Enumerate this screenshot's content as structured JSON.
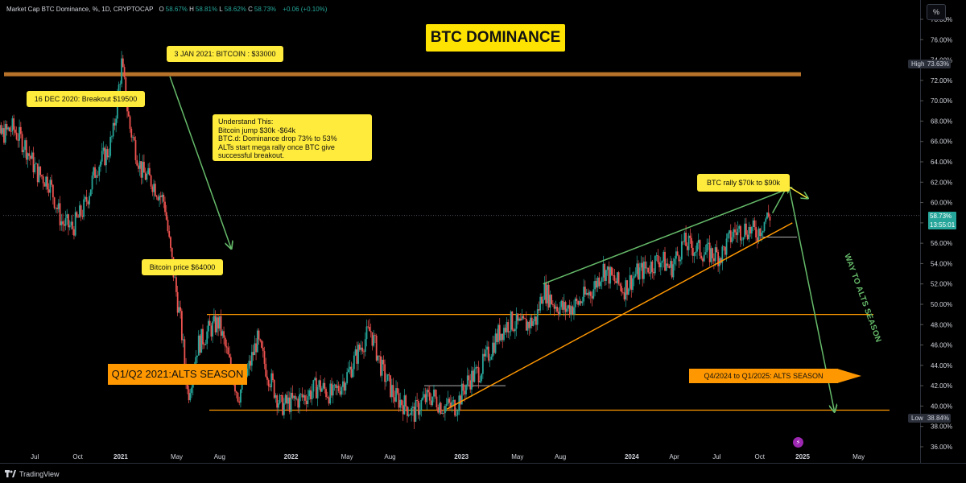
{
  "header": {
    "symbol_text": "Market Cap BTC Dominance, %, 1D, CRYPTOCAP",
    "ohlc": [
      {
        "k": "O",
        "v": "58.67%"
      },
      {
        "k": "H",
        "v": "58.81%"
      },
      {
        "k": "L",
        "v": "58.62%"
      },
      {
        "k": "C",
        "v": "58.73%"
      }
    ],
    "change": "+0.06 (+0.10%)"
  },
  "scale_button": "%",
  "brand": "TradingView",
  "title": "BTC DOMINANCE",
  "annotations": {
    "top": "3 JAN 2021: BITCOIN : $33000",
    "breakout": "16 DEC 2020: Breakout $19500",
    "understand": [
      "Understand This:",
      "Bitcoin jump $30k -$64k",
      "BTC.d: Dominance drop 73% to 53%",
      "ALTs start mega rally once BTC give",
      "successful breakout."
    ],
    "price64": "Bitcoin price $64000",
    "rally": "BTC rally $70k to $90k",
    "alts1": "Q1/Q2 2021:ALTS SEASON",
    "alts2": "Q4/2024 to Q1/2025: ALTS SEASON",
    "way": "WAY TO ALTS SEASON"
  },
  "price_axis": {
    "high_label": "High",
    "high_value": "73.63%",
    "low_label": "Low",
    "low_value": "38.84%",
    "current_value": "58.73%",
    "countdown": "13:55:01"
  },
  "colors": {
    "background": "#000000",
    "up": "#26a69a",
    "down": "#ef5350",
    "trend_green": "#66bb6a",
    "orange": "#ff9800",
    "annotation_yellow": "#ffeb3b",
    "resistance_line": "#b8732a"
  },
  "chart_data": {
    "type": "candlestick",
    "title": "BTC DOMINANCE",
    "series_name": "Market Cap BTC Dominance, %",
    "interval": "1D",
    "ylim": [
      36,
      78
    ],
    "y_ticks": [
      "36.00%",
      "38.00%",
      "40.00%",
      "42.00%",
      "44.00%",
      "46.00%",
      "48.00%",
      "50.00%",
      "52.00%",
      "54.00%",
      "56.00%",
      "58.00%",
      "60.00%",
      "62.00%",
      "64.00%",
      "66.00%",
      "68.00%",
      "70.00%",
      "72.00%",
      "74.00%",
      "76.00%",
      "78.00%"
    ],
    "x_ticks": [
      "Apr",
      "Jul",
      "Oct",
      "2021",
      "May",
      "Aug",
      "2022",
      "May",
      "Aug",
      "2023",
      "May",
      "Aug",
      "2024",
      "Apr",
      "Jul",
      "Oct",
      "2025",
      "May"
    ],
    "price_path": [
      [
        "2020-03-15",
        64.8
      ],
      [
        "2020-04-15",
        66.5
      ],
      [
        "2020-05-15",
        67.3
      ],
      [
        "2020-06-10",
        65.6
      ],
      [
        "2020-07-05",
        63.0
      ],
      [
        "2020-08-01",
        62.0
      ],
      [
        "2020-08-28",
        58.0
      ],
      [
        "2020-09-20",
        57.5
      ],
      [
        "2020-10-15",
        59.5
      ],
      [
        "2020-11-10",
        63.5
      ],
      [
        "2020-12-05",
        65.0
      ],
      [
        "2020-12-16",
        66.8
      ],
      [
        "2021-01-03",
        73.6
      ],
      [
        "2021-01-20",
        67.5
      ],
      [
        "2021-02-15",
        63.0
      ],
      [
        "2021-03-10",
        62.0
      ],
      [
        "2021-04-05",
        60.0
      ],
      [
        "2021-04-15",
        56.0
      ],
      [
        "2021-05-10",
        48.0
      ],
      [
        "2021-05-25",
        41.0
      ],
      [
        "2021-06-15",
        46.0
      ],
      [
        "2021-07-10",
        47.5
      ],
      [
        "2021-07-30",
        48.2
      ],
      [
        "2021-08-20",
        44.5
      ],
      [
        "2021-09-10",
        41.0
      ],
      [
        "2021-10-01",
        43.5
      ],
      [
        "2021-10-20",
        46.5
      ],
      [
        "2021-11-10",
        43.5
      ],
      [
        "2021-12-10",
        40.0
      ],
      [
        "2022-01-10",
        40.5
      ],
      [
        "2022-02-01",
        41.0
      ],
      [
        "2022-03-01",
        42.0
      ],
      [
        "2022-04-01",
        41.0
      ],
      [
        "2022-05-01",
        43.0
      ],
      [
        "2022-06-01",
        46.0
      ],
      [
        "2022-06-20",
        47.5
      ],
      [
        "2022-07-15",
        43.5
      ],
      [
        "2022-08-10",
        41.0
      ],
      [
        "2022-09-05",
        40.0
      ],
      [
        "2022-09-20",
        39.2
      ],
      [
        "2022-10-10",
        40.5
      ],
      [
        "2022-11-01",
        41.0
      ],
      [
        "2022-11-20",
        40.0
      ],
      [
        "2022-12-20",
        40.0
      ],
      [
        "2023-01-15",
        42.5
      ],
      [
        "2023-02-10",
        43.5
      ],
      [
        "2023-03-20",
        47.0
      ],
      [
        "2023-04-15",
        48.3
      ],
      [
        "2023-05-10",
        47.8
      ],
      [
        "2023-06-10",
        48.5
      ],
      [
        "2023-06-25",
        51.5
      ],
      [
        "2023-07-20",
        50.0
      ],
      [
        "2023-08-10",
        49.5
      ],
      [
        "2023-09-05",
        50.0
      ],
      [
        "2023-10-10",
        51.5
      ],
      [
        "2023-11-01",
        53.5
      ],
      [
        "2023-11-20",
        52.5
      ],
      [
        "2023-12-15",
        51.5
      ],
      [
        "2024-01-10",
        53.0
      ],
      [
        "2024-02-01",
        53.5
      ],
      [
        "2024-03-01",
        54.5
      ],
      [
        "2024-03-25",
        53.5
      ],
      [
        "2024-04-20",
        56.0
      ],
      [
        "2024-05-15",
        55.5
      ],
      [
        "2024-06-10",
        55.0
      ],
      [
        "2024-07-10",
        54.8
      ],
      [
        "2024-08-05",
        57.0
      ],
      [
        "2024-09-01",
        57.5
      ],
      [
        "2024-09-25",
        57.0
      ],
      [
        "2024-10-15",
        58.5
      ],
      [
        "2024-10-25",
        58.73
      ]
    ],
    "projection": [
      [
        "2024-10-25",
        58.73
      ],
      [
        "2024-12-10",
        61.8
      ],
      [
        "2025-03-10",
        39.5
      ]
    ],
    "levels": {
      "resistance": 72.6,
      "support_top": 49.0,
      "support_bottom": 39.6
    },
    "trendlines": {
      "upper": [
        [
          "2023-06-25",
          52.0
        ],
        [
          "2024-12-10",
          61.5
        ]
      ],
      "lower": [
        [
          "2022-12-01",
          39.7
        ],
        [
          "2024-12-10",
          58.0
        ]
      ]
    }
  }
}
